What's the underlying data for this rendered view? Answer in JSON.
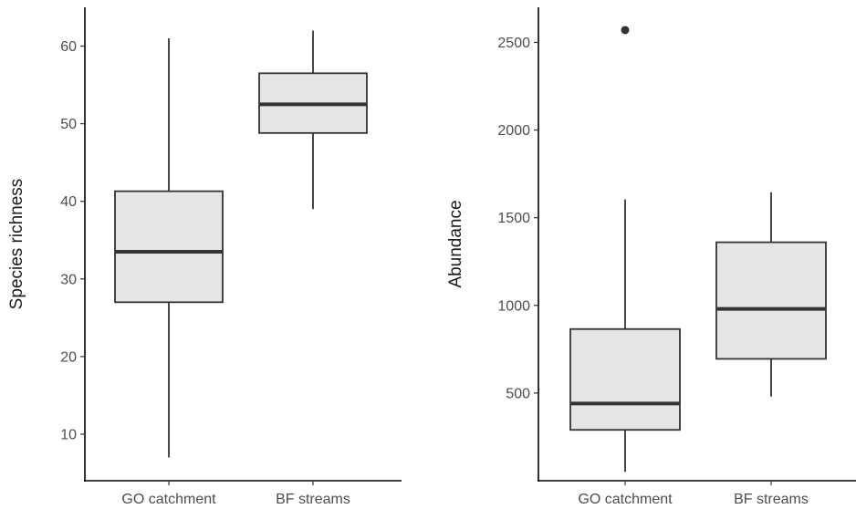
{
  "chart_data": [
    {
      "type": "box",
      "title": "",
      "xlabel": "",
      "ylabel": "Species richness",
      "ylim": [
        4,
        65
      ],
      "yticks": [
        10,
        20,
        30,
        40,
        50,
        60
      ],
      "grid": false,
      "categories": [
        "GO catchment",
        "BF streams"
      ],
      "boxes": [
        {
          "category": "GO catchment",
          "whisker_low": 7,
          "q1": 27,
          "median": 33.5,
          "q3": 41.3,
          "whisker_high": 61,
          "outliers": []
        },
        {
          "category": "BF streams",
          "whisker_low": 39,
          "q1": 48.8,
          "median": 52.5,
          "q3": 56.5,
          "whisker_high": 62,
          "outliers": []
        }
      ],
      "colors": {
        "box_fill": "#e5e5e5",
        "stroke": "#333333"
      }
    },
    {
      "type": "box",
      "title": "",
      "xlabel": "",
      "ylabel": "Abundance",
      "ylim": [
        0,
        2700
      ],
      "yticks": [
        500,
        1000,
        1500,
        2000,
        2500
      ],
      "grid": false,
      "categories": [
        "GO catchment",
        "BF streams"
      ],
      "boxes": [
        {
          "category": "GO catchment",
          "whisker_low": 50,
          "q1": 290,
          "median": 440,
          "q3": 865,
          "whisker_high": 1605,
          "outliers": [
            2570
          ]
        },
        {
          "category": "BF streams",
          "whisker_low": 480,
          "q1": 695,
          "median": 980,
          "q3": 1360,
          "whisker_high": 1645,
          "outliers": []
        }
      ],
      "colors": {
        "box_fill": "#e5e5e5",
        "stroke": "#333333"
      }
    }
  ]
}
